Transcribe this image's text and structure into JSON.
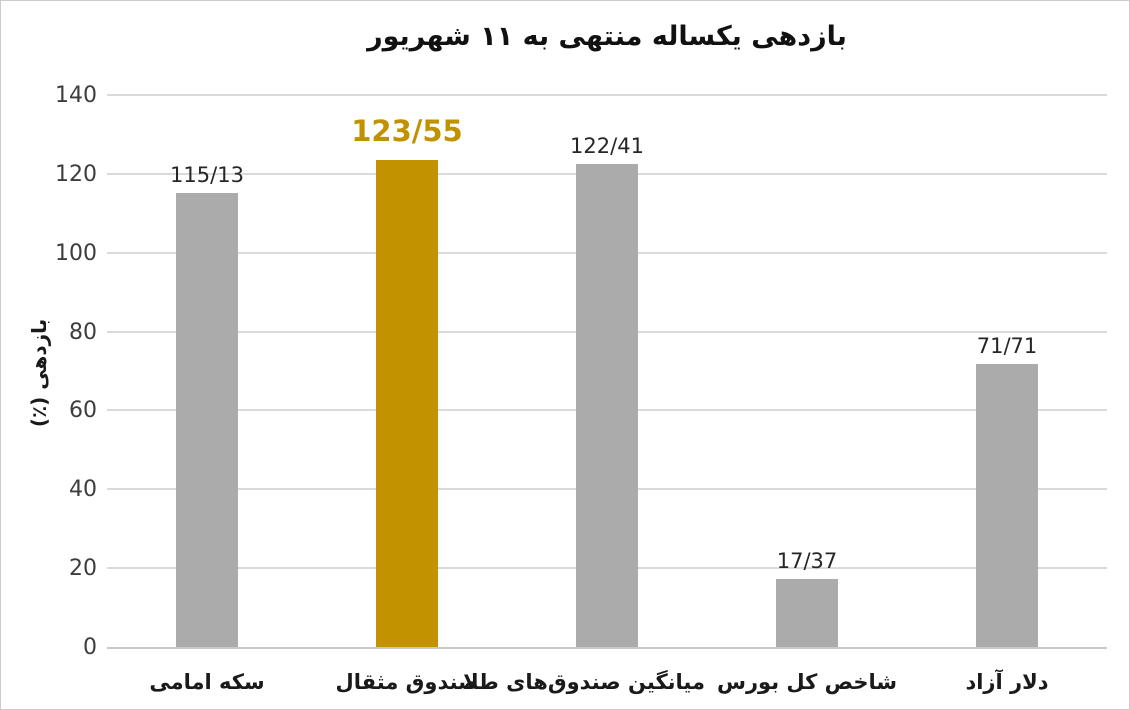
{
  "chart_data": {
    "type": "bar",
    "title": "بازدهی یکساله منتهی به ۱۱ شهریور",
    "xlabel": "",
    "ylabel": "بازدهی (٪)",
    "ylim": [
      0,
      140
    ],
    "yticks": [
      0,
      20,
      40,
      60,
      80,
      100,
      120,
      140
    ],
    "grid": true,
    "legend": "none",
    "categories": [
      "سکه امامی",
      "صندوق مثقال",
      "میانگین صندوق‌های طلا",
      "شاخص کل بورس",
      "دلار آزاد"
    ],
    "values": [
      115.13,
      123.55,
      122.41,
      17.37,
      71.71
    ],
    "value_labels": [
      "115/13",
      "123/55",
      "122/41",
      "17/37",
      "71/71"
    ],
    "highlight_index": 1,
    "colors": {
      "bar": "#ababab",
      "highlight_bar": "#c29200",
      "highlight_value_text": "#c09200",
      "value_text": "#262626",
      "gridline": "#dadada"
    }
  }
}
